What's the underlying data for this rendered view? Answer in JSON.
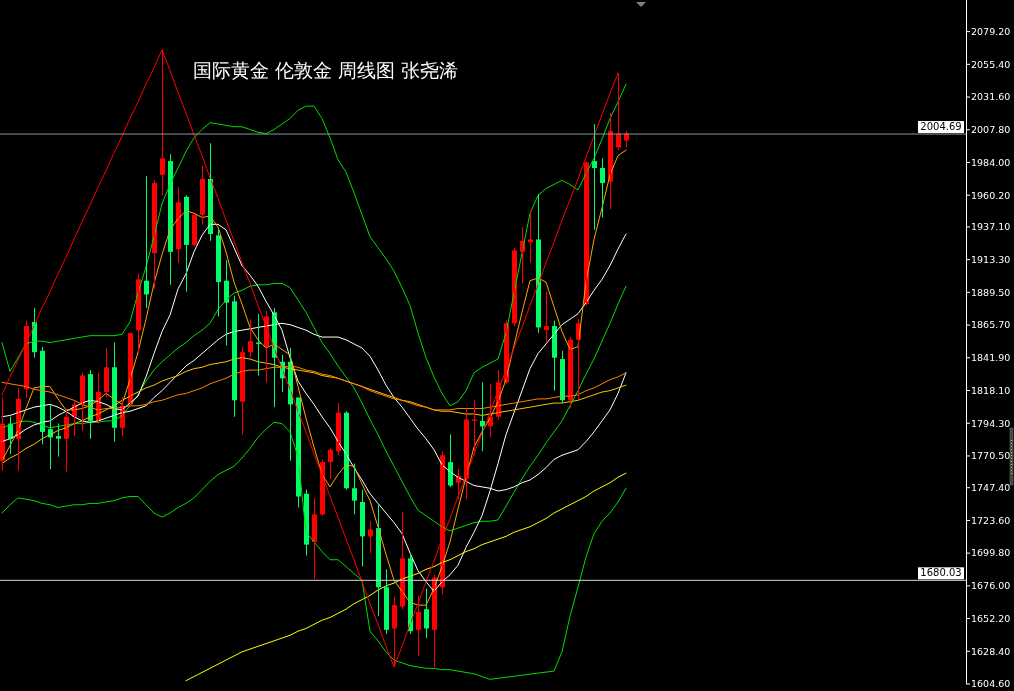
{
  "chart_data": {
    "type": "candlestick",
    "title": "国际黄金 伦敦金 周线图 张尧浠",
    "categories": [
      null,
      null,
      null,
      null,
      null,
      null,
      null,
      null,
      null,
      null,
      null,
      null,
      null,
      null,
      null,
      null,
      null,
      null,
      null,
      null,
      null,
      null,
      null,
      null,
      null,
      null,
      null,
      null,
      null,
      null,
      null,
      null,
      null,
      null,
      null,
      null,
      null,
      null,
      null,
      null,
      null,
      null,
      null,
      null,
      null,
      null,
      null,
      null,
      null,
      null,
      null,
      null,
      null,
      null,
      null,
      null,
      null,
      null,
      null,
      null,
      null,
      null,
      null,
      null,
      null,
      null,
      null,
      null,
      null,
      null,
      null,
      null,
      null,
      null,
      null,
      null,
      null,
      null,
      null,
      null,
      null,
      null,
      null,
      null,
      null,
      null,
      null,
      null,
      null,
      null,
      null,
      null,
      null,
      null,
      null,
      null,
      null,
      null,
      null,
      null,
      null,
      null,
      null,
      null,
      null,
      null,
      null,
      null,
      null,
      null,
      null,
      null,
      null,
      null,
      null,
      null,
      null,
      null,
      null,
      null,
      null
    ],
    "ohlc": [
      [
        1767,
        1813,
        1760,
        1794
      ],
      [
        1794,
        1799,
        1772,
        1783
      ],
      [
        1783,
        1820,
        1760,
        1812
      ],
      [
        1819,
        1869,
        1813,
        1865
      ],
      [
        1868,
        1878,
        1842,
        1846
      ],
      [
        1847,
        1850,
        1779,
        1788
      ],
      [
        1790,
        1808,
        1761,
        1784
      ],
      [
        1785,
        1794,
        1770,
        1783
      ],
      [
        1783,
        1804,
        1759,
        1799
      ],
      [
        1799,
        1810,
        1785,
        1808
      ],
      [
        1808,
        1831,
        1789,
        1829
      ],
      [
        1830,
        1833,
        1783,
        1796
      ],
      [
        1796,
        1831,
        1794,
        1817
      ],
      [
        1817,
        1849,
        1813,
        1835
      ],
      [
        1835,
        1853,
        1781,
        1791
      ],
      [
        1791,
        1813,
        1785,
        1807
      ],
      [
        1808,
        1860,
        1806,
        1860
      ],
      [
        1862,
        1903,
        1845,
        1899
      ],
      [
        1898,
        1974,
        1878,
        1888
      ],
      [
        1918,
        1971,
        1892,
        1969
      ],
      [
        1975,
        2066,
        1960,
        1987
      ],
      [
        1985,
        1990,
        1895,
        1919
      ],
      [
        1921,
        1966,
        1911,
        1955
      ],
      [
        1959,
        1960,
        1890,
        1924
      ],
      [
        1924,
        1946,
        1923,
        1946
      ],
      [
        1946,
        1982,
        1939,
        1972
      ],
      [
        1972,
        1998,
        1927,
        1932
      ],
      [
        1931,
        1935,
        1872,
        1897
      ],
      [
        1898,
        1913,
        1851,
        1882
      ],
      [
        1883,
        1887,
        1799,
        1811
      ],
      [
        1810,
        1850,
        1786,
        1846
      ],
      [
        1846,
        1870,
        1842,
        1854
      ],
      [
        1853,
        1874,
        1829,
        1852
      ],
      [
        1850,
        1876,
        1824,
        1872
      ],
      [
        1875,
        1878,
        1806,
        1842
      ],
      [
        1839,
        1844,
        1817,
        1827
      ],
      [
        1839,
        1849,
        1767,
        1808
      ],
      [
        1813,
        1813,
        1733,
        1741
      ],
      [
        1743,
        1746,
        1698,
        1706
      ],
      [
        1708,
        1740,
        1681,
        1728
      ],
      [
        1728,
        1768,
        1727,
        1766
      ],
      [
        1766,
        1776,
        1754,
        1775
      ],
      [
        1774,
        1809,
        1771,
        1802
      ],
      [
        1802,
        1803,
        1746,
        1747
      ],
      [
        1747,
        1765,
        1728,
        1738
      ],
      [
        1737,
        1746,
        1690,
        1712
      ],
      [
        1712,
        1723,
        1700,
        1717
      ],
      [
        1718,
        1735,
        1654,
        1675
      ],
      [
        1675,
        1688,
        1641,
        1644
      ],
      [
        1645,
        1668,
        1617,
        1662
      ],
      [
        1661,
        1730,
        1659,
        1696
      ],
      [
        1696,
        1700,
        1641,
        1643
      ],
      [
        1644,
        1669,
        1625,
        1657
      ],
      [
        1659,
        1674,
        1638,
        1645
      ],
      [
        1644,
        1684,
        1617,
        1682
      ],
      [
        1675,
        1774,
        1670,
        1771
      ],
      [
        1766,
        1786,
        1748,
        1749
      ],
      [
        1751,
        1761,
        1739,
        1756
      ],
      [
        1754,
        1805,
        1739,
        1797
      ],
      [
        1796,
        1811,
        1771,
        1797
      ],
      [
        1796,
        1824,
        1774,
        1792
      ],
      [
        1792,
        1823,
        1784,
        1799
      ],
      [
        1799,
        1833,
        1797,
        1824
      ],
      [
        1824,
        1869,
        1823,
        1867
      ],
      [
        1867,
        1922,
        1865,
        1920
      ],
      [
        1919,
        1937,
        1896,
        1927
      ],
      [
        1926,
        1949,
        1911,
        1928
      ],
      [
        1928,
        1961,
        1860,
        1864
      ],
      [
        1862,
        1890,
        1853,
        1865
      ],
      [
        1865,
        1869,
        1818,
        1842
      ],
      [
        1841,
        1847,
        1809,
        1811
      ],
      [
        1811,
        1857,
        1805,
        1855
      ],
      [
        1855,
        1870,
        1811,
        1867
      ],
      [
        1881,
        1985,
        1880,
        1984
      ],
      [
        1985,
        2012,
        1935,
        1980
      ],
      [
        1980,
        1987,
        1944,
        1969
      ],
      [
        1970,
        2020,
        1950,
        2007
      ],
      [
        1995,
        2049,
        1993,
        2005
      ],
      [
        2000,
        2007,
        1995,
        2005
      ],
      null,
      null,
      null,
      null,
      null,
      null,
      null,
      null,
      null,
      null,
      null,
      null,
      null,
      null,
      null,
      null,
      null,
      null,
      null,
      null,
      null,
      null,
      null,
      null,
      null,
      null,
      null,
      null,
      null,
      null,
      null,
      null,
      null,
      null,
      null,
      null,
      null,
      null,
      null,
      null,
      null,
      null
    ],
    "series": [
      {
        "type": "line",
        "color": "#00dd00",
        "values": [
          1853,
          1832,
          1842,
          1852,
          1854,
          1854,
          1853,
          1854,
          1855,
          1856,
          1857,
          1858,
          1858,
          1858,
          1858,
          1859,
          1868,
          1889,
          1908,
          1930,
          1954,
          1968,
          1980,
          1992,
          2002,
          2008,
          2013,
          2012,
          2011,
          2010,
          2010,
          2008,
          2006,
          2005,
          2008,
          2012,
          2016,
          2022,
          2025,
          2025,
          2016,
          2002,
          1986,
          1977,
          1962,
          1946,
          1930,
          1922,
          1914,
          1905,
          1893,
          1880,
          1860,
          1842,
          1828,
          1816,
          1807,
          1810,
          1818,
          1831,
          1835,
          1838,
          1841,
          1860,
          1889,
          1918,
          1947,
          1960,
          1965,
          1968,
          1971,
          1968,
          1964,
          1976,
          1987,
          2001,
          2016,
          2028,
          2041,
          null,
          null,
          null,
          null,
          null,
          null,
          null,
          null,
          null,
          null,
          null,
          null,
          null,
          null,
          null,
          null,
          null,
          null,
          null,
          null,
          null,
          null,
          null,
          null,
          null,
          null,
          null,
          null,
          null,
          null,
          null,
          null,
          null,
          null,
          null,
          null,
          null,
          null,
          null,
          null,
          null,
          null
        ]
      },
      {
        "type": "line",
        "color": "#00dd00",
        "values": [
          1791,
          1793,
          1795,
          1796,
          1795,
          1793,
          1791,
          1792,
          1793,
          1794,
          1794,
          1795,
          1795,
          1796,
          1796,
          1800,
          1807,
          1815,
          1825,
          1833,
          1839,
          1844,
          1849,
          1853,
          1858,
          1862,
          1867,
          1877,
          1884,
          1889,
          1891,
          1894,
          1895,
          1895,
          1896,
          1896,
          1893,
          1884,
          1875,
          1864,
          1853,
          1845,
          1836,
          1828,
          1820,
          1809,
          1797,
          1786,
          1774,
          1763,
          1752,
          1741,
          1731,
          1727,
          1723,
          1719,
          1716,
          1718,
          1720,
          1722,
          1723,
          1723,
          1724,
          1734,
          1744,
          1754,
          1763,
          1771,
          1780,
          1788,
          1796,
          1807,
          1818,
          1830,
          1841,
          1854,
          1867,
          1881,
          1894,
          null,
          null,
          null,
          null,
          null,
          null,
          null,
          null,
          null,
          null,
          null,
          null,
          null,
          null,
          null,
          null,
          null,
          null,
          null,
          null,
          null,
          null,
          null,
          null,
          null,
          null,
          null,
          null,
          null,
          null,
          null,
          null,
          null,
          null,
          null,
          null,
          null,
          null,
          null,
          null,
          null,
          null
        ]
      },
      {
        "type": "line",
        "color": "#00dd00",
        "values": [
          1729,
          1735,
          1740,
          1739,
          1738,
          1736,
          1735,
          1733,
          1734,
          1735,
          1735,
          1736,
          1736,
          1737,
          1738,
          1740,
          1741,
          1741,
          1735,
          1729,
          1726,
          1729,
          1733,
          1736,
          1740,
          1746,
          1752,
          1757,
          1760,
          1763,
          1769,
          1776,
          1784,
          1790,
          1795,
          1794,
          1788,
          1770,
          1715,
          1708,
          1701,
          1695,
          1695,
          1690,
          1685,
          1680,
          1643,
          1636,
          1628,
          1622,
          1620,
          1618,
          1617,
          1616,
          1616,
          1615,
          1615,
          1614,
          1613,
          1612,
          1610,
          1608,
          null,
          null,
          null,
          null,
          null,
          null,
          null,
          1614,
          1628,
          1654,
          1675,
          1697,
          1714,
          1723,
          1729,
          1737,
          1747,
          null,
          null,
          null,
          null,
          null,
          null,
          null,
          null,
          null,
          null,
          null,
          null,
          null,
          null,
          null,
          null,
          null,
          null,
          null,
          null,
          null,
          null,
          null,
          null,
          null,
          null,
          null,
          null,
          null,
          null,
          null,
          null,
          null,
          null,
          null,
          null,
          null,
          null,
          null,
          null,
          null,
          null
        ]
      },
      {
        "type": "line",
        "color": "#ffffff",
        "values": [
          1781,
          1783,
          1786,
          1790,
          1793,
          1795,
          1796,
          1800,
          1803,
          1806,
          1809,
          1811,
          1810,
          1808,
          1805,
          1804,
          1809,
          1814,
          1828,
          1845,
          1861,
          1873,
          1892,
          1903,
          1919,
          1931,
          1939,
          1939,
          1935,
          1922,
          1909,
          1902,
          1894,
          1883,
          1873,
          1862,
          1842,
          1825,
          1816,
          1808,
          1799,
          1791,
          1781,
          1772,
          1762,
          1753,
          1743,
          1736,
          1729,
          1722,
          1714,
          1700,
          1687,
          1679,
          1672,
          1679,
          1684,
          1691,
          1704,
          1715,
          1727,
          1745,
          1765,
          1786,
          1802,
          1818,
          1834,
          1845,
          1852,
          1859,
          1866,
          1870,
          1874,
          1882,
          1891,
          1899,
          1909,
          1921,
          1932,
          null,
          null,
          null,
          null,
          null,
          null,
          null,
          null,
          null,
          null,
          null,
          null,
          null,
          null,
          null,
          null,
          null,
          null,
          null,
          null,
          null,
          null,
          null,
          null,
          null,
          null,
          null,
          null,
          null,
          null,
          null,
          null,
          null,
          null,
          null,
          null,
          null,
          null,
          null,
          null,
          null,
          null
        ]
      },
      {
        "type": "line",
        "color": "#ffffff",
        "values": [
          1799,
          1800,
          1802,
          1804,
          1806,
          1807,
          1808,
          1806,
          1803,
          1799,
          1796,
          1795,
          1796,
          1798,
          1800,
          1802,
          1803,
          1805,
          1807,
          1813,
          1818,
          1824,
          1830,
          1836,
          1840,
          1845,
          1850,
          1855,
          1859,
          1861,
          1862,
          1863,
          1864,
          1865,
          1866,
          1867,
          1866,
          1864,
          1862,
          1859,
          1857,
          1857,
          1857,
          1855,
          1852,
          1849,
          1843,
          1833,
          1822,
          1813,
          1806,
          1798,
          1790,
          1783,
          1775,
          1764,
          1759,
          1755,
          1752,
          1749,
          1748,
          1747,
          1745,
          1746,
          1748,
          1751,
          1753,
          1757,
          1762,
          1768,
          1771,
          1773,
          1775,
          1781,
          1788,
          1796,
          1804,
          1816,
          1831,
          null,
          null,
          null,
          null,
          null,
          null,
          null,
          null,
          null,
          null,
          null,
          null,
          null,
          null,
          null,
          null,
          null,
          null,
          null,
          null,
          null,
          null,
          null,
          null,
          null,
          null,
          null,
          null,
          null,
          null,
          null,
          null,
          null,
          null,
          null,
          null,
          null,
          null,
          null,
          null,
          null,
          null
        ]
      },
      {
        "type": "line",
        "color": "#ffa500",
        "values": [
          1767,
          1778,
          1789,
          1805,
          1820,
          1821,
          1821,
          1812,
          1804,
          1804,
          1805,
          1807,
          1811,
          1816,
          1812,
          1808,
          1826,
          1846,
          1870,
          1896,
          1917,
          1935,
          1943,
          1949,
          1947,
          1944,
          1945,
          1937,
          1919,
          1897,
          1881,
          1864,
          1855,
          1849,
          1852,
          1848,
          1844,
          1821,
          1798,
          1777,
          1757,
          1748,
          1757,
          1764,
          1763,
          1750,
          1738,
          1719,
          1699,
          1680,
          1672,
          1664,
          1662,
          1662,
          1674,
          1690,
          1708,
          1732,
          1755,
          1777,
          1788,
          1798,
          1810,
          1826,
          1851,
          1875,
          1898,
          1900,
          1897,
          1879,
          1861,
          1848,
          1850,
          1897,
          1928,
          1951,
          1975,
          1989,
          1993,
          null,
          null,
          null,
          null,
          null,
          null,
          null,
          null,
          null,
          null,
          null,
          null,
          null,
          null,
          null,
          null,
          null,
          null,
          null,
          null,
          null,
          null,
          null,
          null,
          null,
          null,
          null,
          null,
          null,
          null,
          null,
          null,
          null,
          null,
          null,
          null,
          null,
          null,
          null,
          null,
          null,
          null
        ]
      },
      {
        "type": "line",
        "color": "#ffc000",
        "values": [
          1765,
          1769,
          1772,
          1776,
          1779,
          1783,
          1786,
          1789,
          1791,
          1794,
          1796,
          1799,
          1801,
          1804,
          1807,
          1811,
          1814,
          1817,
          1820,
          1822,
          1825,
          1827,
          1829,
          1832,
          1834,
          1835,
          1837,
          1838,
          1839,
          1841,
          1842,
          1841,
          1839,
          1838,
          1837,
          1835,
          1834,
          1833,
          1832,
          1831,
          1829,
          1828,
          1827,
          1825,
          1823,
          1821,
          1819,
          1817,
          1815,
          1813,
          1811,
          1810,
          1808,
          1806,
          1804,
          1803,
          1803,
          1802,
          1801,
          1801,
          1800,
          1801,
          1802,
          1803,
          1804,
          1805,
          1806,
          1807,
          1808,
          1809,
          1809,
          1810,
          1811,
          1813,
          1815,
          1817,
          1818,
          1820,
          1822,
          null,
          null,
          null,
          null,
          null,
          null,
          null,
          null,
          null,
          null,
          null,
          null,
          null,
          null,
          null,
          null,
          null,
          null,
          null,
          null,
          null,
          null,
          null,
          null,
          null,
          null,
          null,
          null,
          null,
          null,
          null,
          null,
          null,
          null,
          null,
          null,
          null,
          null,
          null,
          null,
          null,
          null
        ]
      },
      {
        "type": "line",
        "color": "#ff8000",
        "values": [
          1824,
          1823,
          1822,
          1821,
          1819,
          1818,
          1817,
          1815,
          1813,
          1811,
          1808,
          1806,
          1804,
          1805,
          1805,
          1806,
          1807,
          1807,
          1808,
          1810,
          1811,
          1813,
          1815,
          1816,
          1818,
          1820,
          1823,
          1825,
          1827,
          1830,
          1832,
          1833,
          1833,
          1834,
          1835,
          1835,
          1836,
          1835,
          1833,
          1832,
          1830,
          1829,
          1827,
          1825,
          1823,
          1821,
          1818,
          1816,
          1814,
          1812,
          1811,
          1809,
          1807,
          1806,
          1804,
          1804,
          1804,
          1805,
          1805,
          1805,
          1805,
          1806,
          1807,
          1808,
          1809,
          1810,
          1811,
          1812,
          1812,
          1813,
          1814,
          1814,
          1815,
          1818,
          1820,
          1823,
          1826,
          1828,
          1831,
          null,
          null,
          null,
          null,
          null,
          null,
          null,
          null,
          null,
          null,
          null,
          null,
          null,
          null,
          null,
          null,
          null,
          null,
          null,
          null,
          null,
          null,
          null,
          null,
          null,
          null,
          null,
          null,
          null,
          null,
          null,
          null,
          null,
          null,
          null,
          null,
          null,
          null,
          null,
          null,
          null,
          null
        ]
      },
      {
        "type": "line",
        "color": "#ffff00",
        "values": [
          null,
          null,
          null,
          null,
          null,
          null,
          null,
          null,
          null,
          null,
          null,
          null,
          null,
          null,
          null,
          null,
          null,
          null,
          null,
          null,
          null,
          null,
          null,
          1607,
          1610,
          1613,
          1616,
          1619,
          1622,
          1625,
          1628,
          1630,
          1632,
          1634,
          1636,
          1638,
          1640,
          1643,
          1645,
          1648,
          1651,
          1653,
          1656,
          1659,
          1663,
          1666,
          1669,
          1673,
          1676,
          1678,
          1681,
          1683,
          1685,
          1688,
          1690,
          1693,
          1695,
          1698,
          1701,
          1703,
          1706,
          1708,
          1710,
          1712,
          1715,
          1717,
          1719,
          1722,
          1725,
          1729,
          1732,
          1735,
          1738,
          1741,
          1745,
          1748,
          1751,
          1755,
          1758,
          null,
          null,
          null,
          null,
          null,
          null,
          null,
          null,
          null,
          null,
          null,
          null,
          null,
          null,
          null,
          null,
          null,
          null,
          null,
          null,
          null,
          null,
          null,
          null,
          null,
          null,
          null,
          null,
          null,
          null,
          null,
          null,
          null,
          null,
          null,
          null,
          null,
          null,
          null,
          null,
          null,
          null
        ]
      },
      {
        "type": "line",
        "color": "#ff0000",
        "values": [
          1815,
          1828,
          1840,
          1853,
          1865,
          1878,
          1890,
          1903,
          1915,
          1928,
          1941,
          1953,
          1966,
          1978,
          1991,
          2003,
          2016,
          2028,
          2041,
          2053,
          2066,
          2051,
          2035,
          2020,
          2004,
          1989,
          1973,
          1958,
          1942,
          1927,
          1911,
          1896,
          1880,
          1865,
          1849,
          1834,
          1819,
          1803,
          1788,
          1772,
          1757,
          1741,
          1726,
          1710,
          1695,
          1679,
          1663,
          1648,
          1632,
          1617,
          1632,
          1648,
          1663,
          1679,
          1694,
          1710,
          1725,
          1741,
          1756,
          1772,
          1787,
          1802,
          1818,
          1833,
          1849,
          1864,
          1880,
          1895,
          1911,
          1926,
          1942,
          1957,
          1972,
          1988,
          2003,
          2019,
          2034,
          2049,
          null,
          null,
          null,
          null,
          null,
          null,
          null,
          null,
          null,
          null,
          null,
          null,
          null,
          null,
          null,
          null,
          null,
          null,
          null,
          null,
          null,
          null,
          null,
          null,
          null,
          null,
          null,
          null,
          null,
          null,
          null,
          null,
          null,
          null,
          null,
          null,
          null,
          null,
          null,
          null,
          null,
          null,
          null
        ]
      }
    ],
    "ylim": [
      1604.6,
      2102.2
    ],
    "yticks": [
      {
        "value": 2079.2,
        "label": "2079.20"
      },
      {
        "value": 2055.4,
        "label": "2055.40"
      },
      {
        "value": 2031.6,
        "label": "2031.60"
      },
      {
        "value": 2007.8,
        "label": "2007.80"
      },
      {
        "value": 1984,
        "label": "1984.00"
      },
      {
        "value": 1960.2,
        "label": "1960.20"
      },
      {
        "value": 1937.1,
        "label": "1937.10"
      },
      {
        "value": 1913.3,
        "label": "1913.30"
      },
      {
        "value": 1889.5,
        "label": "1889.50"
      },
      {
        "value": 1865.7,
        "label": "1865.70"
      },
      {
        "value": 1841.9,
        "label": "1841.90"
      },
      {
        "value": 1818.1,
        "label": "1818.10"
      },
      {
        "value": 1794.3,
        "label": "1794.30"
      },
      {
        "value": 1770.5,
        "label": "1770.50"
      },
      {
        "value": 1747.4,
        "label": "1747.40"
      },
      {
        "value": 1723.6,
        "label": "1723.60"
      },
      {
        "value": 1699.8,
        "label": "1699.80"
      },
      {
        "value": 1676,
        "label": "1676.00"
      },
      {
        "value": 1652.2,
        "label": "1652.20"
      },
      {
        "value": 1628.4,
        "label": "1628.40"
      },
      {
        "value": 1604.6,
        "label": "1604.60"
      }
    ],
    "ref_lines": [
      {
        "axis": "y",
        "value": 2004.69,
        "label": "2004.69",
        "color": "#8796a8"
      },
      {
        "axis": "y",
        "value": 1680.03,
        "label": "1680.03",
        "color": "#d8d8d8"
      }
    ],
    "tick_labels": "y"
  }
}
